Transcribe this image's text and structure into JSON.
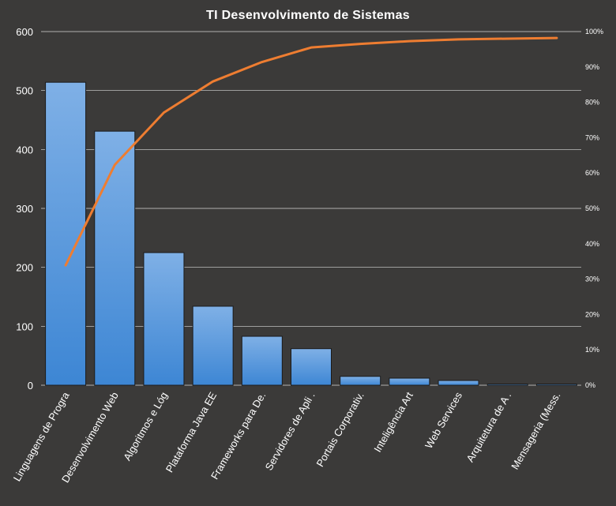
{
  "chart_data": {
    "type": "bar",
    "title": "TI Desenvolvimento  de Sistemas",
    "categories": [
      "Linguagens de Progra",
      "Desenvolvimento Web",
      "Algoritmos e Lóg",
      "Plataforma Java EE",
      "Frameworks para De.",
      "Servidores de Apli .",
      "Portais Corporativ.",
      "Inteligência Art",
      "Web Services",
      "Arquitetura de A .",
      "Mensageria (Mess."
    ],
    "series": [
      {
        "type": "bar",
        "axis": "left",
        "values": [
          514,
          431,
          225,
          134,
          83,
          62,
          15,
          12,
          8,
          2,
          2
        ]
      },
      {
        "type": "line",
        "axis": "right",
        "values": [
          33.9,
          62.3,
          77.1,
          85.9,
          91.4,
          95.5,
          96.5,
          97.3,
          97.8,
          98.0,
          98.2
        ]
      }
    ],
    "y_left": {
      "min": 0,
      "max": 600,
      "ticks": [
        "0",
        "100",
        "200",
        "300",
        "400",
        "500",
        "600"
      ]
    },
    "y_right": {
      "min": 0,
      "max": 100,
      "ticks": [
        "0%",
        "10%",
        "20%",
        "30%",
        "40%",
        "50%",
        "60%",
        "70%",
        "80%",
        "90%",
        "100%"
      ]
    },
    "grid": true,
    "legend": "none",
    "colors": {
      "background": "#3b3a39",
      "bar_top": "#7fb0e6",
      "bar_bottom": "#3d86d4",
      "line": "#ee7d31",
      "grid": "#d9d9d9",
      "text": "#ffffff"
    }
  }
}
